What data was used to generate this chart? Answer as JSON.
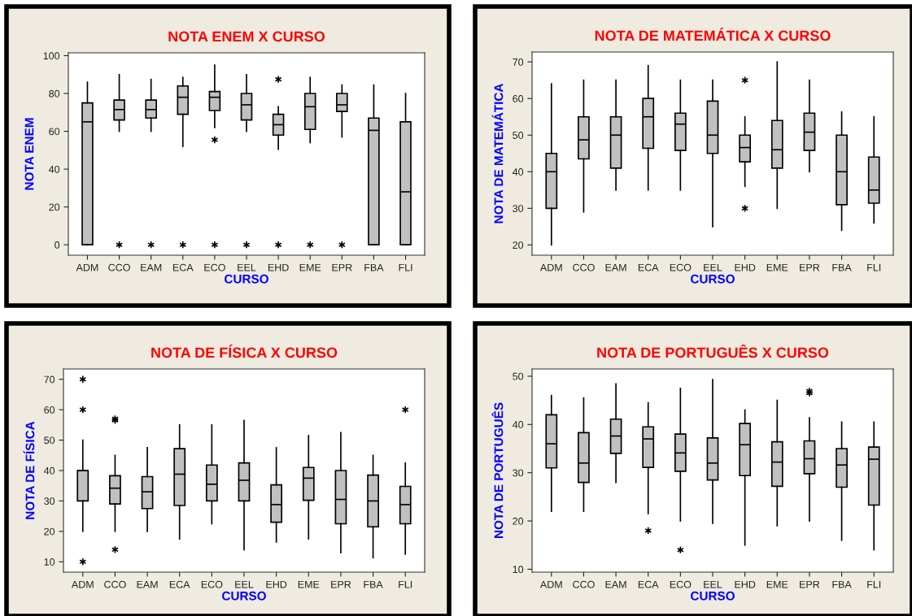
{
  "chart_data": [
    {
      "type": "box",
      "title": "NOTA ENEM X CURSO",
      "xlabel": "CURSO",
      "ylabel": "NOTA ENEM",
      "categories": [
        "ADM",
        "CCO",
        "EAM",
        "ECA",
        "ECO",
        "EEL",
        "EHD",
        "EME",
        "EPR",
        "FBA",
        "FLI"
      ],
      "ylim": [
        -5.5,
        101.5
      ],
      "yticks": [
        0,
        20,
        40,
        60,
        80,
        100
      ],
      "grid": false,
      "legend": false,
      "boxes": [
        {
          "low": 0,
          "q1": 0,
          "median": 65,
          "q3": 75,
          "high": 86
        },
        {
          "low": 60,
          "q1": 66,
          "median": 71.5,
          "q3": 76.5,
          "high": 90,
          "outliers": [
            0
          ]
        },
        {
          "low": 60,
          "q1": 67,
          "median": 71.5,
          "q3": 76.5,
          "high": 87.5,
          "outliers": [
            0
          ]
        },
        {
          "low": 52,
          "q1": 69,
          "median": 78,
          "q3": 84,
          "high": 88.5,
          "outliers": [
            0
          ]
        },
        {
          "low": 62,
          "q1": 71,
          "median": 78,
          "q3": 81,
          "high": 95,
          "outliers": [
            55.5,
            0
          ]
        },
        {
          "low": 60,
          "q1": 66,
          "median": 74,
          "q3": 80,
          "high": 90,
          "outliers": [
            0
          ]
        },
        {
          "low": 50.5,
          "q1": 58,
          "median": 63.5,
          "q3": 69,
          "high": 73,
          "outliers": [
            87.5,
            0
          ]
        },
        {
          "low": 54,
          "q1": 61,
          "median": 73,
          "q3": 80,
          "high": 88.5,
          "outliers": [
            0
          ]
        },
        {
          "low": 57,
          "q1": 70.5,
          "median": 74,
          "q3": 80,
          "high": 84.5,
          "outliers": [
            0
          ]
        },
        {
          "low": 0,
          "q1": 0,
          "median": 60.5,
          "q3": 67,
          "high": 84.5
        },
        {
          "low": 0,
          "q1": 0,
          "median": 28,
          "q3": 65,
          "high": 80
        }
      ]
    },
    {
      "type": "box",
      "title": "NOTA DE MATEMÁTICA X CURSO",
      "xlabel": "CURSO",
      "ylabel": "NOTA DE MATEMÁTICA",
      "categories": [
        "ADM",
        "CCO",
        "EAM",
        "ECA",
        "ECO",
        "EEL",
        "EHD",
        "EME",
        "EPR",
        "FBA",
        "FLI"
      ],
      "ylim": [
        17.2,
        72.7
      ],
      "yticks": [
        20,
        30,
        40,
        50,
        60,
        70
      ],
      "grid": false,
      "legend": false,
      "boxes": [
        {
          "low": 20,
          "q1": 30,
          "median": 40,
          "q3": 45,
          "high": 64
        },
        {
          "low": 29,
          "q1": 43.5,
          "median": 48.7,
          "q3": 55,
          "high": 65
        },
        {
          "low": 35,
          "q1": 41,
          "median": 50,
          "q3": 55,
          "high": 65
        },
        {
          "low": 35,
          "q1": 46.4,
          "median": 55,
          "q3": 60,
          "high": 69
        },
        {
          "low": 35,
          "q1": 45.8,
          "median": 53,
          "q3": 56,
          "high": 65
        },
        {
          "low": 25,
          "q1": 45,
          "median": 50,
          "q3": 59.3,
          "high": 65
        },
        {
          "low": 36,
          "q1": 42.7,
          "median": 46.6,
          "q3": 50,
          "high": 55,
          "outliers": [
            65,
            30
          ]
        },
        {
          "low": 30,
          "q1": 41,
          "median": 46,
          "q3": 54,
          "high": 70
        },
        {
          "low": 40,
          "q1": 45.8,
          "median": 50.8,
          "q3": 56,
          "high": 65
        },
        {
          "low": 24,
          "q1": 31,
          "median": 40,
          "q3": 50,
          "high": 56.3
        },
        {
          "low": 26,
          "q1": 31.4,
          "median": 35,
          "q3": 44,
          "high": 55
        }
      ]
    },
    {
      "type": "box",
      "title": "NOTA DE FÍSICA X CURSO",
      "xlabel": "CURSO",
      "ylabel": "NOTA DE FÍSICA",
      "categories": [
        "ADM",
        "CCO",
        "EAM",
        "ECA",
        "ECO",
        "EEL",
        "EHD",
        "EME",
        "EPR",
        "FBA",
        "FLI"
      ],
      "ylim": [
        6.6,
        73.4
      ],
      "yticks": [
        10,
        20,
        30,
        40,
        50,
        60,
        70
      ],
      "grid": false,
      "legend": false,
      "boxes": [
        {
          "low": 20,
          "q1": 30,
          "median": 40,
          "q3": 40,
          "high": 50,
          "outliers": [
            70,
            60,
            10
          ]
        },
        {
          "low": 20,
          "q1": 29,
          "median": 34.2,
          "q3": 38.3,
          "high": 45,
          "outliers": [
            57,
            56.5,
            14
          ]
        },
        {
          "low": 20,
          "q1": 27.5,
          "median": 33,
          "q3": 38,
          "high": 47.5
        },
        {
          "low": 17.5,
          "q1": 28.5,
          "median": 38.8,
          "q3": 47.2,
          "high": 55
        },
        {
          "low": 22.5,
          "q1": 30,
          "median": 35.5,
          "q3": 41.8,
          "high": 55
        },
        {
          "low": 14,
          "q1": 30,
          "median": 36.8,
          "q3": 42.5,
          "high": 56.5
        },
        {
          "low": 16.5,
          "q1": 23,
          "median": 28.8,
          "q3": 35.3,
          "high": 47.5
        },
        {
          "low": 17.5,
          "q1": 30.2,
          "median": 37.5,
          "q3": 41,
          "high": 51.5
        },
        {
          "low": 13,
          "q1": 22.5,
          "median": 30.5,
          "q3": 40,
          "high": 52.5
        },
        {
          "low": 11.3,
          "q1": 21.5,
          "median": 30,
          "q3": 38.5,
          "high": 45
        },
        {
          "low": 12.5,
          "q1": 22.5,
          "median": 28.8,
          "q3": 34.8,
          "high": 42.5,
          "outliers": [
            60
          ]
        }
      ]
    },
    {
      "type": "box",
      "title": "NOTA DE PORTUGUÊS X CURSO",
      "xlabel": "CURSO",
      "ylabel": "NOTA DE PORTUGUÊS",
      "categories": [
        "ADM",
        "CCO",
        "EAM",
        "ECA",
        "ECO",
        "EEL",
        "EHD",
        "EME",
        "EPR",
        "FBA",
        "FLI"
      ],
      "ylim": [
        9.4,
        51.5
      ],
      "yticks": [
        10,
        20,
        30,
        40,
        50
      ],
      "grid": false,
      "legend": false,
      "boxes": [
        {
          "low": 22,
          "q1": 31,
          "median": 36,
          "q3": 42,
          "high": 46
        },
        {
          "low": 22,
          "q1": 28,
          "median": 32,
          "q3": 38.3,
          "high": 45.5
        },
        {
          "low": 28,
          "q1": 34,
          "median": 37.6,
          "q3": 41.1,
          "high": 48.4
        },
        {
          "low": 21.5,
          "q1": 31.1,
          "median": 37,
          "q3": 39.5,
          "high": 44.5,
          "outliers": [
            18
          ]
        },
        {
          "low": 20,
          "q1": 30.3,
          "median": 34.1,
          "q3": 38,
          "high": 47.5,
          "outliers": [
            14
          ]
        },
        {
          "low": 19.5,
          "q1": 28.5,
          "median": 32,
          "q3": 37.2,
          "high": 49.3
        },
        {
          "low": 15,
          "q1": 29.4,
          "median": 35.8,
          "q3": 40.2,
          "high": 43
        },
        {
          "low": 19,
          "q1": 27.2,
          "median": 32.2,
          "q3": 36.4,
          "high": 45
        },
        {
          "low": 20,
          "q1": 29.8,
          "median": 32.9,
          "q3": 36.6,
          "high": 41.4,
          "outliers": [
            46.9,
            46.5
          ]
        },
        {
          "low": 16,
          "q1": 27,
          "median": 31.6,
          "q3": 35,
          "high": 40.5
        },
        {
          "low": 14,
          "q1": 23.3,
          "median": 32.8,
          "q3": 35.3,
          "high": 40.5
        }
      ]
    }
  ]
}
